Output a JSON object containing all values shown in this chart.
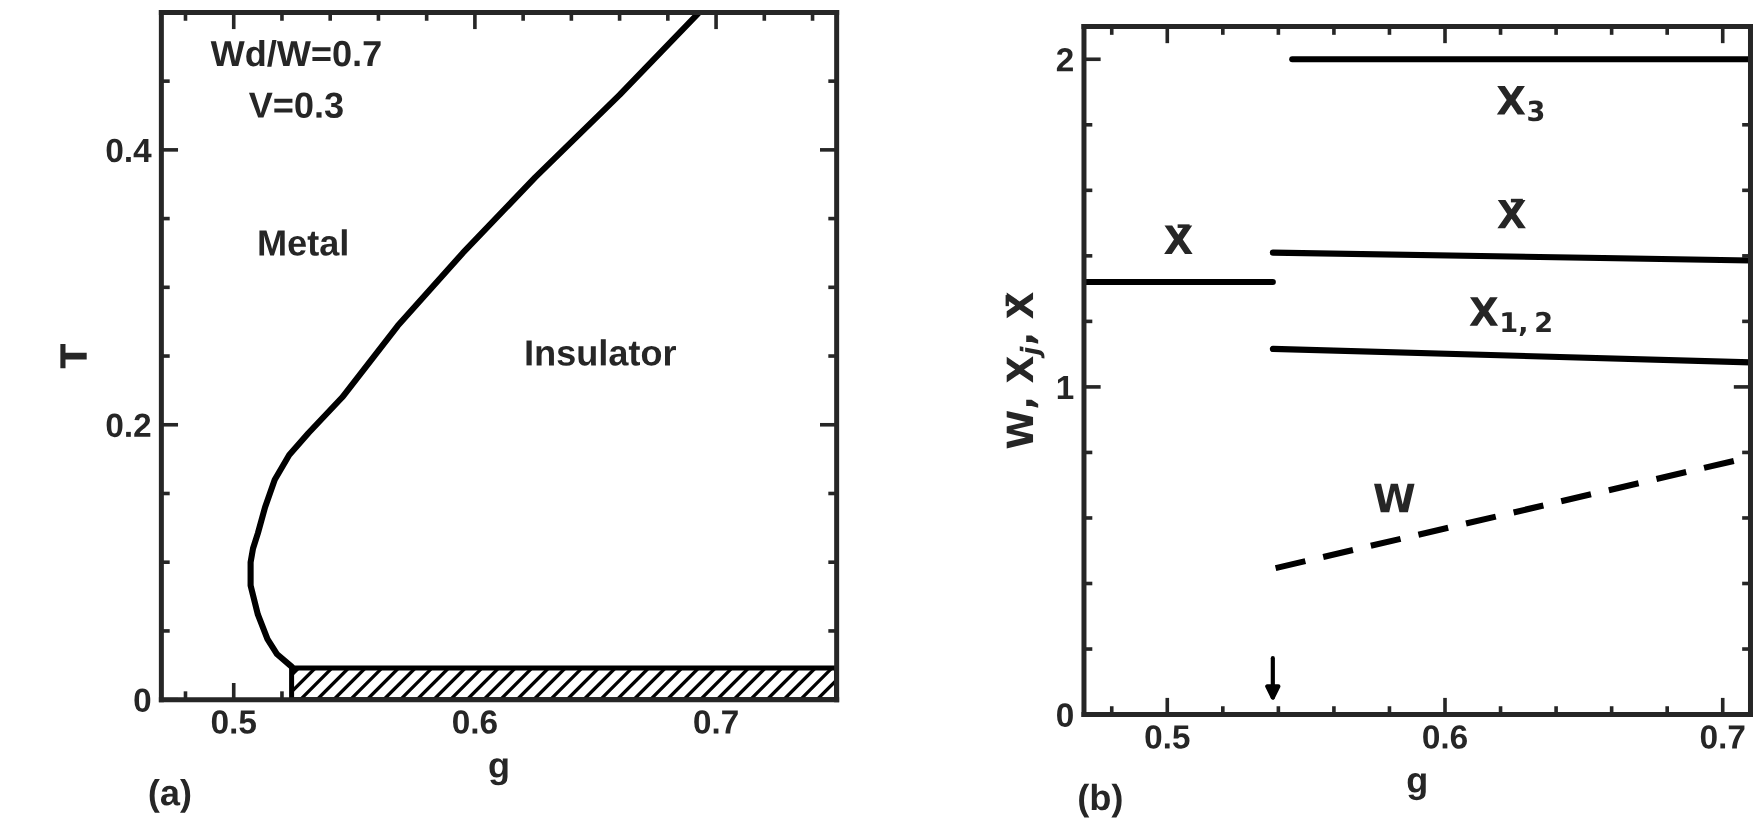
{
  "chart_data": [
    {
      "type": "line",
      "xlabel": "g",
      "ylabel": "T",
      "xlim": [
        0.47,
        0.75
      ],
      "ylim": [
        0,
        0.5
      ],
      "xticks": [
        {
          "value": 0.48,
          "label": null
        },
        0.5,
        {
          "value": 0.52,
          "label": null
        },
        {
          "value": 0.54,
          "label": null
        },
        {
          "value": 0.56,
          "label": null
        },
        {
          "value": 0.58,
          "label": null
        },
        0.6,
        {
          "value": 0.62,
          "label": null
        },
        {
          "value": 0.64,
          "label": null
        },
        {
          "value": 0.66,
          "label": null
        },
        {
          "value": 0.68,
          "label": null
        },
        0.7,
        {
          "value": 0.72,
          "label": null
        },
        {
          "value": 0.74,
          "label": null
        }
      ],
      "yticks": [
        0,
        {
          "value": 0.05,
          "label": null
        },
        {
          "value": 0.1,
          "label": null
        },
        {
          "value": 0.15,
          "label": null
        },
        0.2,
        {
          "value": 0.25,
          "label": null
        },
        {
          "value": 0.3,
          "label": null
        },
        {
          "value": 0.35,
          "label": null
        },
        0.4,
        {
          "value": 0.45,
          "label": null
        }
      ],
      "series": [
        {
          "color": "#000000",
          "line_style": "solid",
          "x": [
            0.524,
            0.518,
            0.514,
            0.51,
            0.507,
            0.507,
            0.508,
            0.51,
            0.513,
            0.517,
            0.523,
            0.531,
            0.545,
            0.568,
            0.595,
            0.625,
            0.66,
            0.693
          ],
          "values": [
            0.024,
            0.033,
            0.044,
            0.062,
            0.083,
            0.1,
            0.11,
            0.121,
            0.14,
            0.16,
            0.178,
            0.194,
            0.22,
            0.272,
            0.325,
            0.38,
            0.44,
            0.5
          ]
        },
        {
          "type": "area",
          "color": "#000000",
          "x": [
            0.524,
            0.75
          ],
          "values": [
            0.023,
            0.023
          ]
        }
      ],
      "annotations": [
        "Wd/W=0.7",
        "V=0.3",
        "Metal",
        "Insulator",
        "(a)"
      ],
      "grid": false,
      "legend": false
    },
    {
      "type": "line",
      "xlabel": "g",
      "ylabel": "W, X$_{j}$, X̄",
      "xlim": [
        0.47,
        0.71
      ],
      "ylim": [
        0,
        2.1
      ],
      "xticks": [
        {
          "value": 0.48,
          "label": null
        },
        0.5,
        {
          "value": 0.52,
          "label": null
        },
        {
          "value": 0.54,
          "label": null
        },
        {
          "value": 0.56,
          "label": null
        },
        {
          "value": 0.58,
          "label": null
        },
        0.6,
        {
          "value": 0.62,
          "label": null
        },
        {
          "value": 0.64,
          "label": null
        },
        {
          "value": 0.66,
          "label": null
        },
        {
          "value": 0.68,
          "label": null
        },
        0.7
      ],
      "yticks": [
        0,
        {
          "value": 0.2,
          "label": null
        },
        {
          "value": 0.4,
          "label": null
        },
        {
          "value": 0.6,
          "label": null
        },
        {
          "value": 0.8,
          "label": null
        },
        1,
        {
          "value": 1.2,
          "label": null
        },
        {
          "value": 1.4,
          "label": null
        },
        {
          "value": 1.6,
          "label": null
        },
        {
          "value": 1.8,
          "label": null
        },
        2
      ],
      "series": [
        {
          "name": "X̄",
          "color": "#000000",
          "line_style": "solid",
          "x": [
            0.47,
            0.538
          ],
          "values": [
            1.32,
            1.32
          ]
        },
        {
          "name": "X̄",
          "color": "#000000",
          "line_style": "solid",
          "x": [
            0.538,
            0.71
          ],
          "values": [
            1.41,
            1.386
          ]
        },
        {
          "name": "X$_{1,2}$",
          "color": "#000000",
          "line_style": "solid",
          "x": [
            0.538,
            0.71
          ],
          "values": [
            1.116,
            1.075
          ]
        },
        {
          "name": "X$_{3}$",
          "color": "#000000",
          "line_style": "solid",
          "x": [
            0.545,
            0.71
          ],
          "values": [
            2.0,
            2.0
          ]
        },
        {
          "name": "W",
          "color": "#000000",
          "line_style": "dashed",
          "x": [
            0.539,
            0.71
          ],
          "values": [
            0.447,
            0.786
          ]
        }
      ],
      "annotations": [
        "(b)"
      ],
      "grid": false,
      "legend": false
    }
  ]
}
